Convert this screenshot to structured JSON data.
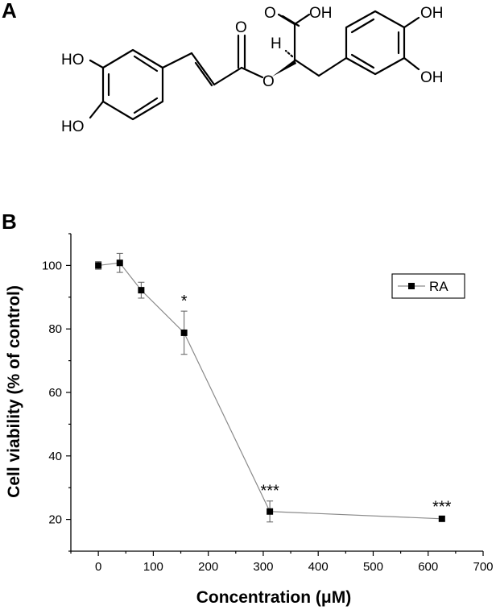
{
  "panels": {
    "a_label": "A",
    "b_label": "B"
  },
  "molecule": {
    "labels": {
      "ho_top_left": "HO",
      "ho_bottom_left": "HO",
      "o_carbonyl": "O",
      "o_ester": "O",
      "h_stereo": "H",
      "o_acid": "O",
      "oh_acid": "OH",
      "oh_top_right": "OH",
      "oh_bottom_right": "OH"
    }
  },
  "chart_data": {
    "type": "line",
    "xlabel": "Concentration (μM)",
    "ylabel": "Cell viability (% of control)",
    "xlim": [
      -50,
      700
    ],
    "ylim": [
      10,
      110
    ],
    "x_ticks": [
      0,
      100,
      200,
      300,
      400,
      500,
      600,
      700
    ],
    "y_ticks": [
      20,
      40,
      60,
      80,
      100
    ],
    "legend_position": "top-right",
    "series": [
      {
        "name": "RA",
        "x": [
          0,
          39,
          78,
          156,
          312,
          625
        ],
        "y": [
          100,
          100.8,
          92.2,
          78.8,
          22.5,
          20.2
        ],
        "error": [
          1.2,
          3.0,
          2.5,
          6.8,
          3.3,
          0.6
        ],
        "significance": [
          "",
          "",
          "",
          "*",
          "***",
          "***"
        ]
      }
    ],
    "colors": {
      "line": "#8a8a8a",
      "marker": "#000000",
      "error_bar": "#6a6a6a"
    }
  }
}
